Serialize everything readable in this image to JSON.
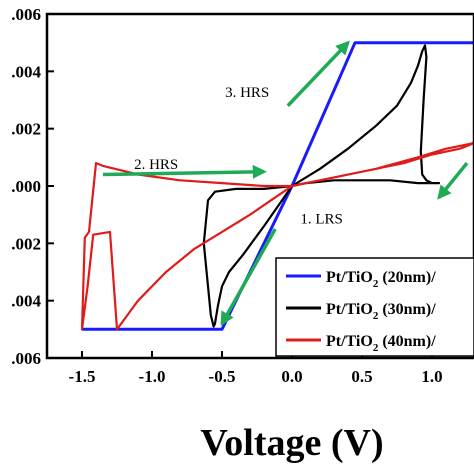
{
  "chart_data": {
    "type": "line",
    "title": "",
    "xlabel": "Voltage (V)",
    "ylabel": "",
    "xlim": [
      -1.75,
      1.3
    ],
    "ylim": [
      -0.006,
      0.006
    ],
    "x_ticks": [
      -1.5,
      -1.0,
      -0.5,
      0.0,
      0.5,
      1.0
    ],
    "x_tick_labels": [
      "-1.5",
      "-1.0",
      "-0.5",
      "0.0",
      "0.5",
      "1.0"
    ],
    "y_ticks": [
      -0.006,
      -0.004,
      -0.002,
      0.0,
      0.002,
      0.004,
      0.006
    ],
    "y_tick_labels": [
      ".006",
      ".004",
      ".002",
      ".000",
      ".002",
      ".004",
      ".006"
    ],
    "grid": false,
    "legend_position": "bottom-right",
    "series": [
      {
        "name_parts": [
          "Pt/TiO",
          "2",
          " (20nm)/"
        ],
        "color": "#1a1aff",
        "x": [
          -1.5,
          -0.5,
          0.0,
          0.45,
          1.3
        ],
        "y": [
          -0.005,
          -0.005,
          0.0,
          0.005,
          0.005
        ]
      },
      {
        "name_parts": [
          "Pt/TiO",
          "2",
          " (30nm)/"
        ],
        "color": "#000000",
        "x": [
          0.0,
          0.2,
          0.4,
          0.6,
          0.75,
          0.85,
          0.9,
          0.93,
          0.95,
          0.96,
          0.94,
          0.92,
          0.93,
          0.96,
          1.0,
          1.05,
          0.9,
          0.7,
          0.5,
          0.3,
          0.1,
          0.0,
          -0.2,
          -0.4,
          -0.55,
          -0.6,
          -0.63,
          -0.6,
          -0.58,
          -0.56,
          -0.55,
          -0.53,
          -0.5,
          -0.45,
          -0.35,
          -0.2,
          -0.1,
          0.0
        ],
        "y": [
          0.0,
          0.0006,
          0.0013,
          0.0021,
          0.0028,
          0.0036,
          0.0042,
          0.0047,
          0.0049,
          0.0045,
          0.003,
          0.0012,
          0.0004,
          0.0002,
          0.0001,
          0.0001,
          0.0001,
          0.0002,
          0.0002,
          0.0002,
          0.0001,
          0.0,
          -0.0001,
          -0.0001,
          -0.0002,
          -0.0005,
          -0.002,
          -0.0035,
          -0.0045,
          -0.0049,
          -0.0048,
          -0.0042,
          -0.0035,
          -0.003,
          -0.0024,
          -0.0014,
          -0.0007,
          0.0
        ]
      },
      {
        "name_parts": [
          "Pt/TiO",
          "2",
          " (40nm)/"
        ],
        "color": "#e01b1b",
        "x": [
          0.0,
          0.3,
          0.6,
          0.9,
          1.1,
          1.2,
          1.3,
          1.2,
          1.0,
          0.8,
          0.5,
          0.2,
          0.0,
          -0.2,
          -0.5,
          -0.8,
          -1.1,
          -1.35,
          -1.4,
          -1.45,
          -1.48,
          -1.5,
          -1.46,
          -1.42,
          -1.3,
          -1.25,
          -1.1,
          -0.9,
          -0.7,
          -0.5,
          -0.3,
          -0.15,
          0.0
        ],
        "y": [
          0.0,
          0.0003,
          0.0006,
          0.001,
          0.0013,
          0.0014,
          0.0015,
          0.0013,
          0.0011,
          0.0008,
          0.0005,
          0.0002,
          0.0,
          0.0,
          0.0001,
          0.0002,
          0.0004,
          0.0007,
          0.0008,
          -0.0016,
          -0.0018,
          -0.005,
          -0.0035,
          -0.0017,
          -0.0016,
          -0.005,
          -0.004,
          -0.003,
          -0.0022,
          -0.0016,
          -0.001,
          -0.0005,
          0.0
        ]
      }
    ],
    "annotations": [
      {
        "text": "1. LRS"
      },
      {
        "text": "2. HRS"
      },
      {
        "text": "3. HRS"
      }
    ],
    "arrow_color": "#1faa55"
  }
}
